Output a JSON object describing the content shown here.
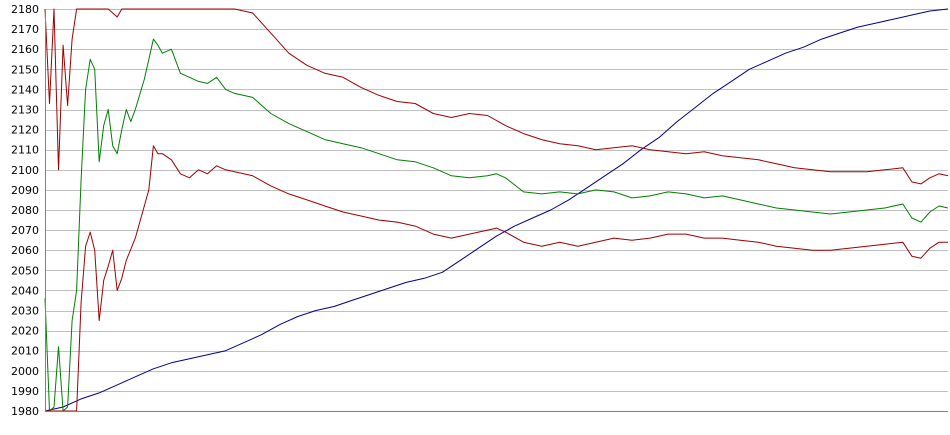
{
  "chart_data": {
    "type": "line",
    "title": "",
    "xlabel": "",
    "ylabel": "",
    "ylim": [
      1980,
      2180
    ],
    "xlim": [
      0,
      100
    ],
    "yticks": [
      1980,
      1990,
      2000,
      2010,
      2020,
      2030,
      2040,
      2050,
      2060,
      2070,
      2080,
      2090,
      2100,
      2110,
      2120,
      2130,
      2140,
      2150,
      2160,
      2170,
      2180
    ],
    "grid": "horizontal",
    "legend": "none",
    "series": [
      {
        "color": "#00008b",
        "points": [
          [
            0,
            1980
          ],
          [
            2,
            1982
          ],
          [
            4,
            1986
          ],
          [
            6,
            1989
          ],
          [
            8,
            1993
          ],
          [
            10,
            1997
          ],
          [
            12,
            2001
          ],
          [
            14,
            2004
          ],
          [
            16,
            2006
          ],
          [
            18,
            2008
          ],
          [
            20,
            2010
          ],
          [
            22,
            2014
          ],
          [
            24,
            2018
          ],
          [
            26,
            2023
          ],
          [
            28,
            2027
          ],
          [
            30,
            2030
          ],
          [
            32,
            2032
          ],
          [
            34,
            2035
          ],
          [
            36,
            2038
          ],
          [
            38,
            2041
          ],
          [
            40,
            2044
          ],
          [
            42,
            2046
          ],
          [
            44,
            2049
          ],
          [
            46,
            2055
          ],
          [
            48,
            2061
          ],
          [
            50,
            2067
          ],
          [
            52,
            2072
          ],
          [
            54,
            2076
          ],
          [
            56,
            2080
          ],
          [
            58,
            2085
          ],
          [
            60,
            2091
          ],
          [
            62,
            2097
          ],
          [
            64,
            2103
          ],
          [
            66,
            2110
          ],
          [
            68,
            2116
          ],
          [
            70,
            2124
          ],
          [
            72,
            2131
          ],
          [
            74,
            2138
          ],
          [
            76,
            2144
          ],
          [
            78,
            2150
          ],
          [
            80,
            2154
          ],
          [
            82,
            2158
          ],
          [
            84,
            2161
          ],
          [
            86,
            2165
          ],
          [
            88,
            2168
          ],
          [
            90,
            2171
          ],
          [
            92,
            2173
          ],
          [
            94,
            2175
          ],
          [
            96,
            2177
          ],
          [
            98,
            2179
          ],
          [
            100,
            2180
          ]
        ]
      },
      {
        "color": "#a00000",
        "points": [
          [
            0,
            2180
          ],
          [
            0.5,
            2133
          ],
          [
            1,
            2180
          ],
          [
            1.5,
            2100
          ],
          [
            2,
            2162
          ],
          [
            2.5,
            2132
          ],
          [
            3,
            2165
          ],
          [
            3.5,
            2180
          ],
          [
            5,
            2180
          ],
          [
            7,
            2180
          ],
          [
            8,
            2176
          ],
          [
            8.5,
            2180
          ],
          [
            12,
            2180
          ],
          [
            15,
            2180
          ],
          [
            17,
            2180
          ],
          [
            20,
            2180
          ],
          [
            21,
            2180
          ],
          [
            23,
            2178
          ],
          [
            25,
            2168
          ],
          [
            27,
            2158
          ],
          [
            29,
            2152
          ],
          [
            31,
            2148
          ],
          [
            33,
            2146
          ],
          [
            35,
            2141
          ],
          [
            37,
            2137
          ],
          [
            39,
            2134
          ],
          [
            41,
            2133
          ],
          [
            43,
            2128
          ],
          [
            45,
            2126
          ],
          [
            47,
            2128
          ],
          [
            49,
            2127
          ],
          [
            51,
            2122
          ],
          [
            53,
            2118
          ],
          [
            55,
            2115
          ],
          [
            57,
            2113
          ],
          [
            59,
            2112
          ],
          [
            61,
            2110
          ],
          [
            63,
            2111
          ],
          [
            65,
            2112
          ],
          [
            67,
            2110
          ],
          [
            69,
            2109
          ],
          [
            71,
            2108
          ],
          [
            73,
            2109
          ],
          [
            75,
            2107
          ],
          [
            77,
            2106
          ],
          [
            79,
            2105
          ],
          [
            81,
            2103
          ],
          [
            83,
            2101
          ],
          [
            85,
            2100
          ],
          [
            87,
            2099
          ],
          [
            89,
            2099
          ],
          [
            91,
            2099
          ],
          [
            93,
            2100
          ],
          [
            95,
            2101
          ],
          [
            96,
            2094
          ],
          [
            97,
            2093
          ],
          [
            98,
            2096
          ],
          [
            99,
            2098
          ],
          [
            100,
            2097
          ]
        ]
      },
      {
        "color": "#008000",
        "points": [
          [
            0,
            2036
          ],
          [
            0.5,
            1980
          ],
          [
            1,
            1982
          ],
          [
            1.5,
            2012
          ],
          [
            2,
            1980
          ],
          [
            2.5,
            1982
          ],
          [
            3,
            2025
          ],
          [
            3.5,
            2040
          ],
          [
            4,
            2095
          ],
          [
            4.5,
            2140
          ],
          [
            5,
            2155
          ],
          [
            5.5,
            2150
          ],
          [
            6,
            2104
          ],
          [
            6.5,
            2122
          ],
          [
            7,
            2130
          ],
          [
            7.5,
            2112
          ],
          [
            8,
            2108
          ],
          [
            8.5,
            2120
          ],
          [
            9,
            2130
          ],
          [
            9.5,
            2124
          ],
          [
            10,
            2130
          ],
          [
            11,
            2145
          ],
          [
            12,
            2165
          ],
          [
            12.5,
            2162
          ],
          [
            13,
            2158
          ],
          [
            14,
            2160
          ],
          [
            15,
            2148
          ],
          [
            16,
            2146
          ],
          [
            17,
            2144
          ],
          [
            18,
            2143
          ],
          [
            19,
            2146
          ],
          [
            20,
            2140
          ],
          [
            21,
            2138
          ],
          [
            23,
            2136
          ],
          [
            25,
            2128
          ],
          [
            27,
            2123
          ],
          [
            29,
            2119
          ],
          [
            31,
            2115
          ],
          [
            33,
            2113
          ],
          [
            35,
            2111
          ],
          [
            37,
            2108
          ],
          [
            39,
            2105
          ],
          [
            41,
            2104
          ],
          [
            43,
            2101
          ],
          [
            45,
            2097
          ],
          [
            47,
            2096
          ],
          [
            49,
            2097
          ],
          [
            50,
            2098
          ],
          [
            51,
            2096
          ],
          [
            53,
            2089
          ],
          [
            55,
            2088
          ],
          [
            57,
            2089
          ],
          [
            59,
            2088
          ],
          [
            61,
            2090
          ],
          [
            63,
            2089
          ],
          [
            65,
            2086
          ],
          [
            67,
            2087
          ],
          [
            69,
            2089
          ],
          [
            71,
            2088
          ],
          [
            73,
            2086
          ],
          [
            75,
            2087
          ],
          [
            77,
            2085
          ],
          [
            79,
            2083
          ],
          [
            81,
            2081
          ],
          [
            83,
            2080
          ],
          [
            85,
            2079
          ],
          [
            87,
            2078
          ],
          [
            89,
            2079
          ],
          [
            91,
            2080
          ],
          [
            93,
            2081
          ],
          [
            95,
            2083
          ],
          [
            96,
            2076
          ],
          [
            97,
            2074
          ],
          [
            98,
            2079
          ],
          [
            99,
            2082
          ],
          [
            100,
            2081
          ]
        ]
      },
      {
        "color": "#a00000",
        "points": [
          [
            0,
            1980
          ],
          [
            1,
            1980
          ],
          [
            2,
            1980
          ],
          [
            3,
            1980
          ],
          [
            3.5,
            1980
          ],
          [
            4,
            2034
          ],
          [
            4.5,
            2062
          ],
          [
            5,
            2069
          ],
          [
            5.5,
            2060
          ],
          [
            6,
            2025
          ],
          [
            6.5,
            2045
          ],
          [
            7,
            2052
          ],
          [
            7.5,
            2060
          ],
          [
            8,
            2040
          ],
          [
            8.5,
            2046
          ],
          [
            9,
            2055
          ],
          [
            10,
            2066
          ],
          [
            11,
            2082
          ],
          [
            11.5,
            2090
          ],
          [
            12,
            2112
          ],
          [
            12.5,
            2108
          ],
          [
            13,
            2108
          ],
          [
            14,
            2105
          ],
          [
            15,
            2098
          ],
          [
            16,
            2096
          ],
          [
            17,
            2100
          ],
          [
            18,
            2098
          ],
          [
            19,
            2102
          ],
          [
            20,
            2100
          ],
          [
            21,
            2099
          ],
          [
            23,
            2097
          ],
          [
            25,
            2092
          ],
          [
            27,
            2088
          ],
          [
            29,
            2085
          ],
          [
            31,
            2082
          ],
          [
            33,
            2079
          ],
          [
            35,
            2077
          ],
          [
            37,
            2075
          ],
          [
            39,
            2074
          ],
          [
            41,
            2072
          ],
          [
            43,
            2068
          ],
          [
            45,
            2066
          ],
          [
            47,
            2068
          ],
          [
            49,
            2070
          ],
          [
            50,
            2071
          ],
          [
            51,
            2069
          ],
          [
            53,
            2064
          ],
          [
            55,
            2062
          ],
          [
            57,
            2064
          ],
          [
            59,
            2062
          ],
          [
            61,
            2064
          ],
          [
            63,
            2066
          ],
          [
            65,
            2065
          ],
          [
            67,
            2066
          ],
          [
            69,
            2068
          ],
          [
            71,
            2068
          ],
          [
            73,
            2066
          ],
          [
            75,
            2066
          ],
          [
            77,
            2065
          ],
          [
            79,
            2064
          ],
          [
            81,
            2062
          ],
          [
            83,
            2061
          ],
          [
            85,
            2060
          ],
          [
            87,
            2060
          ],
          [
            89,
            2061
          ],
          [
            91,
            2062
          ],
          [
            93,
            2063
          ],
          [
            95,
            2064
          ],
          [
            96,
            2057
          ],
          [
            97,
            2056
          ],
          [
            98,
            2061
          ],
          [
            99,
            2064
          ],
          [
            100,
            2064
          ]
        ]
      }
    ]
  }
}
